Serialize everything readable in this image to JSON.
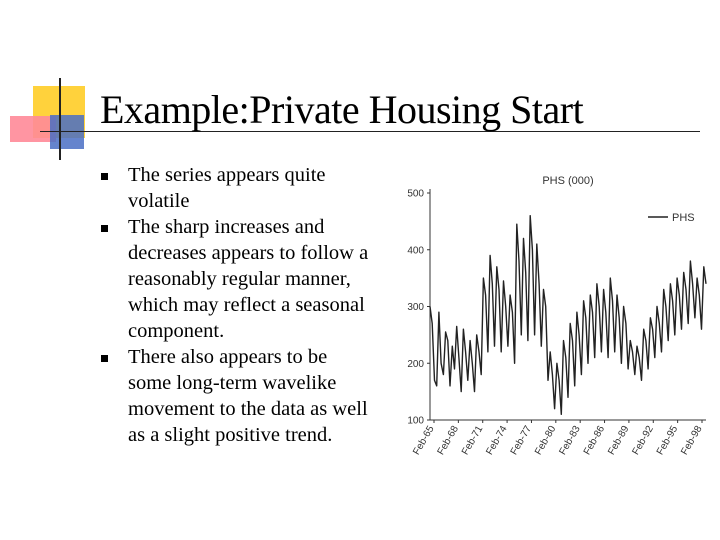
{
  "slide": {
    "title": "Example:Private Housing Start",
    "bullets": [
      "The series appears quite volatile",
      "The sharp increases and decreases appears to follow a reasonably regular manner, which may reflect a seasonal component.",
      "There also appears to be some long-term wavelike movement to the data as well as a slight positive trend."
    ],
    "colors": {
      "deco_yellow": "#ffd23c",
      "deco_red": "#ff8a98",
      "deco_blue": "#4a6fc4"
    }
  },
  "chart_data": {
    "type": "line",
    "title": "PHS (000)",
    "xlabel": "",
    "ylabel": "",
    "ylim": [
      100,
      500
    ],
    "yticks": [
      100,
      200,
      300,
      400,
      500
    ],
    "xticks": [
      "Feb-65",
      "Feb-68",
      "Feb-71",
      "Feb-74",
      "Feb-77",
      "Feb-80",
      "Feb-83",
      "Feb-86",
      "Feb-89",
      "Feb-92",
      "Feb-95",
      "Feb-98"
    ],
    "legend": "top-right",
    "grid": false,
    "series": [
      {
        "name": "PHS",
        "color": "#222222",
        "values": [
          300,
          270,
          170,
          160,
          290,
          200,
          180,
          255,
          240,
          160,
          230,
          190,
          265,
          210,
          150,
          260,
          220,
          170,
          240,
          200,
          150,
          250,
          220,
          180,
          350,
          320,
          220,
          390,
          340,
          230,
          370,
          330,
          220,
          345,
          300,
          230,
          320,
          290,
          200,
          445,
          380,
          250,
          420,
          360,
          240,
          460,
          400,
          250,
          410,
          340,
          230,
          330,
          300,
          170,
          220,
          180,
          120,
          200,
          170,
          110,
          240,
          210,
          140,
          270,
          240,
          160,
          290,
          250,
          180,
          310,
          280,
          200,
          320,
          290,
          210,
          340,
          300,
          220,
          330,
          290,
          210,
          350,
          310,
          220,
          320,
          280,
          200,
          300,
          270,
          190,
          240,
          220,
          180,
          230,
          210,
          170,
          260,
          240,
          190,
          280,
          260,
          210,
          300,
          270,
          220,
          330,
          300,
          240,
          340,
          310,
          250,
          350,
          320,
          260,
          360,
          330,
          270,
          380,
          340,
          280,
          350,
          320,
          260,
          370,
          340
        ]
      }
    ]
  }
}
